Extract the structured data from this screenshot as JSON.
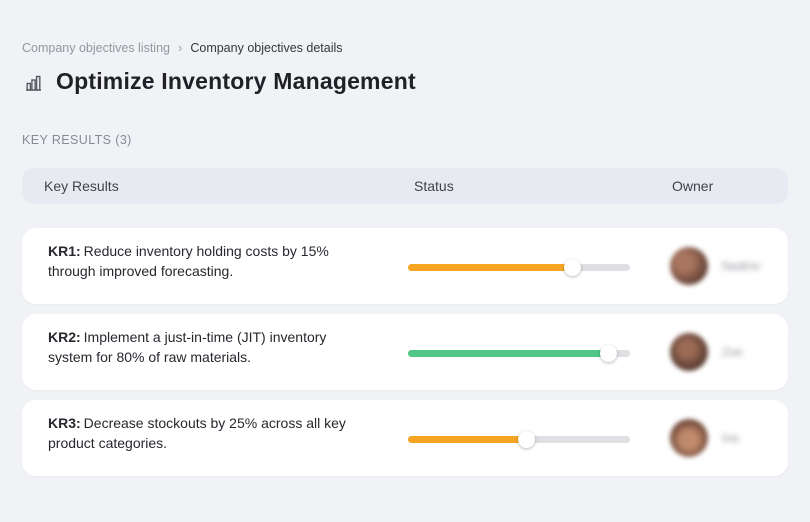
{
  "breadcrumb": {
    "items": [
      {
        "label": "Company objectives listing"
      },
      {
        "label": "Company objectives details"
      }
    ],
    "separator": "›"
  },
  "header": {
    "title": "Optimize Inventory Management",
    "icon": "bar-chart-buildings-icon"
  },
  "section": {
    "label": "KEY RESULTS (3)"
  },
  "table": {
    "columns": [
      "Key Results",
      "Status",
      "Owner"
    ],
    "rows": [
      {
        "kr_label": "KR1:",
        "kr_text": "Reduce inventory holding costs by 15% through improved forecasting.",
        "progress": 74,
        "progress_color": "#f6a523",
        "owner": {
          "name": "Nadine"
        }
      },
      {
        "kr_label": "KR2:",
        "kr_text": "Implement a just-in-time (JIT) inventory system for 80% of raw materials.",
        "progress": 90,
        "progress_color": "#50c689",
        "owner": {
          "name": "Zoe"
        }
      },
      {
        "kr_label": "KR3:",
        "kr_text": "Decrease stockouts by 25% across all key product categories.",
        "progress": 53,
        "progress_color": "#f6a523",
        "owner": {
          "name": "Ina"
        }
      }
    ]
  },
  "colors": {
    "page_background": "#f1f2f6",
    "table_header_background": "#e8eaf2",
    "card_background": "#ffffff",
    "progress_track": "#e0e0e4",
    "progress_orange": "#f6a523",
    "progress_green": "#50c689"
  }
}
